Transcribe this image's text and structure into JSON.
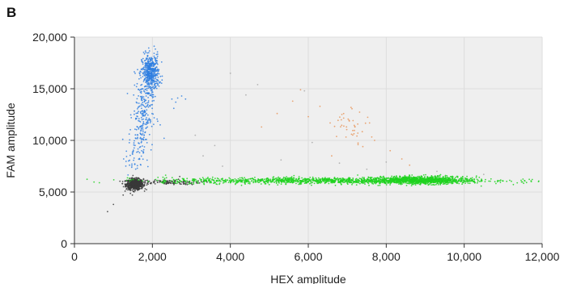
{
  "panel_label": "B",
  "chart_data": {
    "type": "scatter",
    "title": "",
    "xlabel": "HEX amplitude",
    "ylabel": "FAM amplitude",
    "xlim": [
      0,
      12000
    ],
    "ylim": [
      0,
      20000
    ],
    "xticks": [
      0,
      2000,
      4000,
      6000,
      8000,
      10000,
      12000
    ],
    "xtick_labels": [
      "0",
      "2,000",
      "4,000",
      "6,000",
      "8,000",
      "10,000",
      "12,000"
    ],
    "yticks": [
      0,
      5000,
      10000,
      15000,
      20000
    ],
    "ytick_labels": [
      "0",
      "5,000",
      "10,000",
      "15,000",
      "20,000"
    ],
    "grid": true,
    "background": "#efefef",
    "legend": "none",
    "series": [
      {
        "color": "#3a3a3a",
        "clusters": [
          {
            "cx": 1550,
            "cy": 5750,
            "sx": 110,
            "sy": 260,
            "n": 700
          },
          {
            "cx": 2400,
            "cy": 5950,
            "sx": 420,
            "sy": 120,
            "n": 120
          }
        ],
        "points": [
          [
            850,
            3100
          ],
          [
            1000,
            3800
          ],
          [
            1250,
            4700
          ],
          [
            2700,
            6500
          ]
        ]
      },
      {
        "color": "#2f7fe0",
        "clusters": [
          {
            "cx": 1950,
            "cy": 16500,
            "sx": 110,
            "sy": 900,
            "n": 500
          },
          {
            "cx": 1750,
            "cy": 12500,
            "sx": 130,
            "sy": 1600,
            "n": 200
          },
          {
            "cx": 1550,
            "cy": 8500,
            "sx": 120,
            "sy": 1000,
            "n": 60
          }
        ],
        "points": [
          [
            2500,
            14000
          ],
          [
            2600,
            13700
          ],
          [
            2650,
            14100
          ],
          [
            2750,
            14300
          ],
          [
            2550,
            13100
          ],
          [
            2850,
            14000
          ],
          [
            2200,
            11500
          ],
          [
            2300,
            10200
          ]
        ]
      },
      {
        "color": "#1fd21f",
        "clusters": [
          {
            "cx": 6500,
            "cy": 6100,
            "sx": 2100,
            "sy": 150,
            "n": 1300
          },
          {
            "cx": 8900,
            "cy": 6150,
            "sx": 600,
            "sy": 190,
            "n": 900
          }
        ],
        "points": []
      },
      {
        "color": "#e8955a",
        "clusters": [
          {
            "cx": 7100,
            "cy": 11600,
            "sx": 250,
            "sy": 800,
            "n": 40
          }
        ],
        "points": [
          [
            6300,
            13300
          ],
          [
            6000,
            12300
          ],
          [
            7700,
            10000
          ],
          [
            8100,
            9000
          ],
          [
            8400,
            8200
          ],
          [
            4800,
            11300
          ],
          [
            5200,
            12600
          ],
          [
            5800,
            14900
          ],
          [
            6600,
            8500
          ],
          [
            7400,
            9400
          ],
          [
            5600,
            13800
          ],
          [
            8600,
            7600
          ]
        ]
      }
    ],
    "outliers_color": "#a9a9a9",
    "outliers": [
      [
        3100,
        10500
      ],
      [
        3300,
        8500
      ],
      [
        3800,
        7500
      ],
      [
        4000,
        16500
      ],
      [
        4400,
        14400
      ],
      [
        4700,
        15400
      ],
      [
        5300,
        8100
      ],
      [
        5900,
        14800
      ],
      [
        6100,
        9800
      ],
      [
        6800,
        7800
      ],
      [
        7500,
        7200
      ],
      [
        8000,
        7900
      ],
      [
        9300,
        7000
      ],
      [
        10500,
        6700
      ],
      [
        3600,
        9500
      ]
    ]
  }
}
